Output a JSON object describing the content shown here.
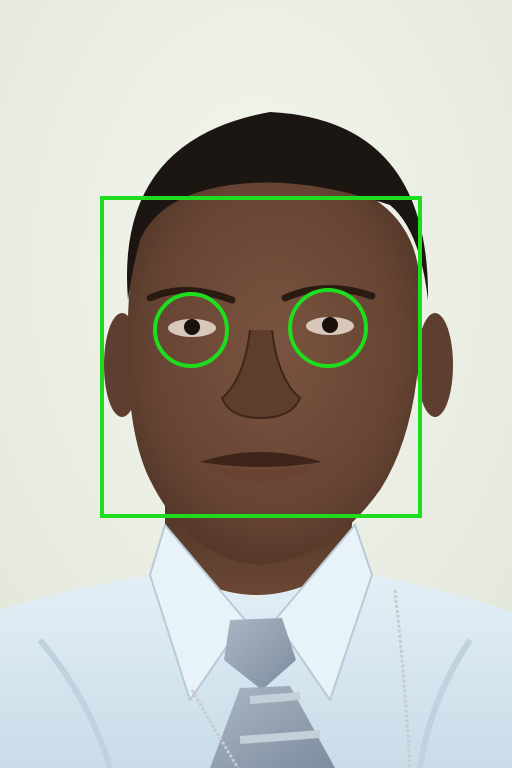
{
  "photo": {
    "subject": "portrait-photo",
    "background_color": "#eef0e6",
    "skin_color": "#6e4a35",
    "hair_color": "#1c1612",
    "shirt_color": "#dcecf4",
    "tie_color": "#9aa8b8"
  },
  "detections": {
    "stroke_color": "#1edc1e",
    "face_boxes": [
      {
        "label": "face"
      }
    ],
    "eye_circles": [
      {
        "label": "left-eye"
      },
      {
        "label": "right-eye"
      }
    ]
  }
}
